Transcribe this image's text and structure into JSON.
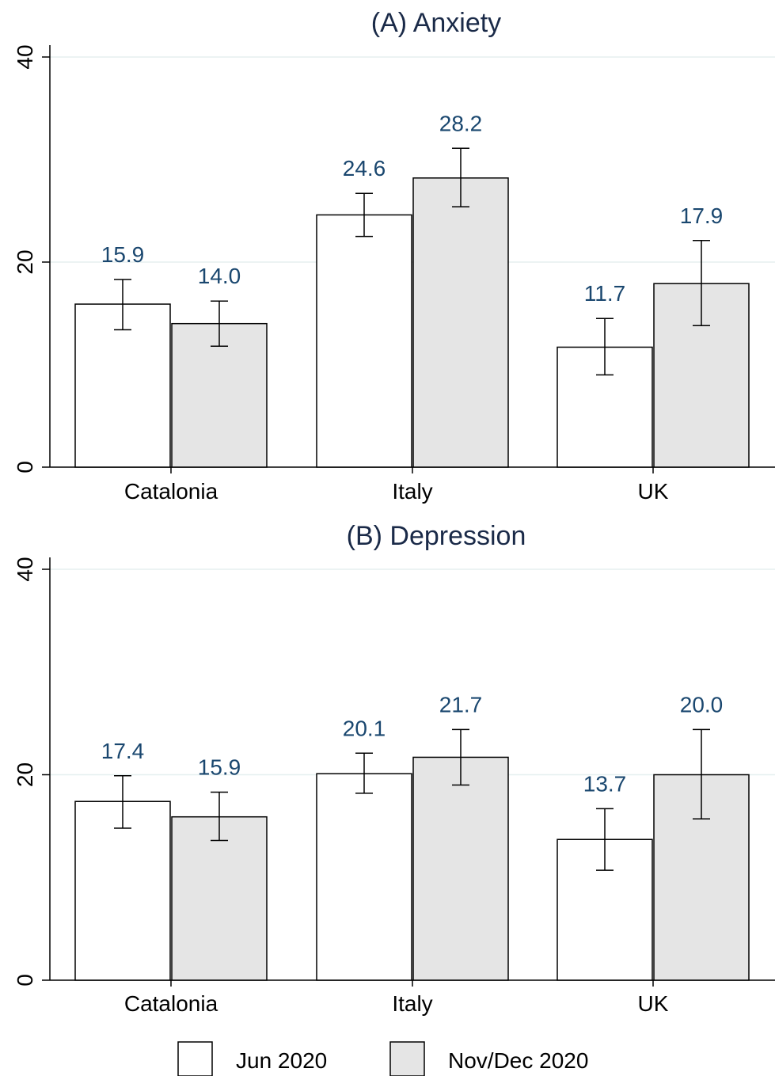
{
  "chart_data": [
    {
      "type": "bar",
      "title": "(A) Anxiety",
      "categories": [
        "Catalonia",
        "Italy",
        "UK"
      ],
      "series": [
        {
          "name": "Jun 2020",
          "values": [
            15.9,
            24.6,
            11.7
          ],
          "ci_low": [
            13.4,
            22.5,
            9.0
          ],
          "ci_high": [
            18.3,
            26.7,
            14.5
          ],
          "color": "#ffffff"
        },
        {
          "name": "Nov/Dec 2020",
          "values": [
            14.0,
            28.2,
            17.9
          ],
          "ci_low": [
            11.8,
            25.4,
            13.8
          ],
          "ci_high": [
            16.2,
            31.1,
            22.1
          ],
          "color": "#e5e5e5"
        }
      ],
      "data_labels": [
        [
          "15.9",
          "24.6",
          "11.7"
        ],
        [
          "14.0",
          "28.2",
          "17.9"
        ]
      ],
      "yticks": [
        "0",
        "20",
        "40"
      ],
      "ylim": [
        0,
        40
      ],
      "xlabel": "",
      "ylabel": "",
      "grid": true
    },
    {
      "type": "bar",
      "title": "(B) Depression",
      "categories": [
        "Catalonia",
        "Italy",
        "UK"
      ],
      "series": [
        {
          "name": "Jun 2020",
          "values": [
            17.4,
            20.1,
            13.7
          ],
          "ci_low": [
            14.8,
            18.2,
            10.7
          ],
          "ci_high": [
            19.9,
            22.1,
            16.7
          ],
          "color": "#ffffff"
        },
        {
          "name": "Nov/Dec 2020",
          "values": [
            15.9,
            21.7,
            20.0
          ],
          "ci_low": [
            13.6,
            19.0,
            15.7
          ],
          "ci_high": [
            18.3,
            24.4,
            24.4
          ],
          "color": "#e5e5e5"
        }
      ],
      "data_labels": [
        [
          "17.4",
          "20.1",
          "13.7"
        ],
        [
          "15.9",
          "21.7",
          "20.0"
        ]
      ],
      "yticks": [
        "0",
        "20",
        "40"
      ],
      "ylim": [
        0,
        40
      ],
      "xlabel": "",
      "ylabel": "",
      "grid": true
    }
  ],
  "legend": {
    "placement": "bottom",
    "items": [
      {
        "label": "Jun 2020",
        "color": "#ffffff"
      },
      {
        "label": "Nov/Dec 2020",
        "color": "#e5e5e5"
      }
    ]
  }
}
